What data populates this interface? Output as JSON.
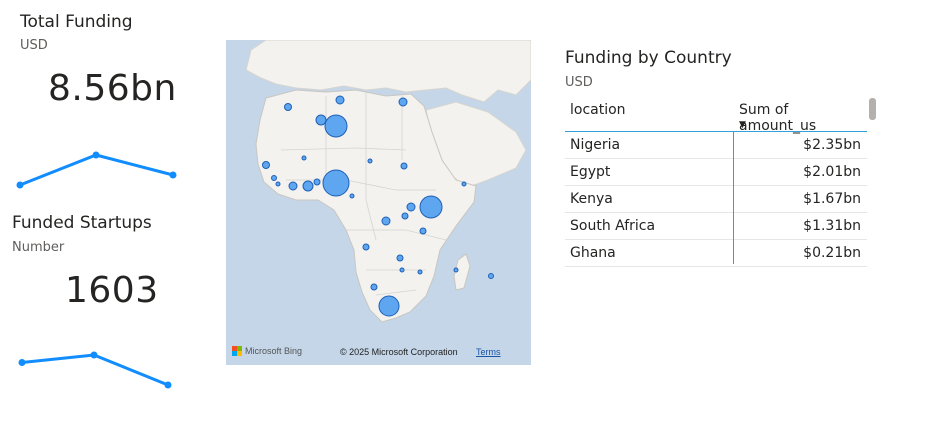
{
  "funding_card": {
    "title": "Total Funding",
    "subtitle": "USD",
    "value": "8.56bn",
    "trend": [
      2,
      5,
      3
    ]
  },
  "startups_card": {
    "title": "Funded Startups",
    "subtitle": "Number",
    "value": "1603",
    "trend": [
      4,
      5,
      1
    ]
  },
  "map": {
    "provider": "Microsoft Bing",
    "copyright": "© 2025 Microsoft Corporation",
    "terms_label": "Terms",
    "land_color": "#f3f2ef",
    "water_color": "#c4d6e8",
    "bubble_color": "#5ea7f0"
  },
  "country_table": {
    "title": "Funding by Country",
    "subtitle": "USD",
    "headers": [
      "location",
      "Sum of amount_us"
    ],
    "rows": [
      {
        "location": "Nigeria",
        "amount": "$2.35bn"
      },
      {
        "location": "Egypt",
        "amount": "$2.01bn"
      },
      {
        "location": "Kenya",
        "amount": "$1.67bn"
      },
      {
        "location": "South Africa",
        "amount": "$1.31bn"
      },
      {
        "location": "Ghana",
        "amount": "$0.21bn"
      }
    ]
  },
  "colors": {
    "accent": "#118dff",
    "table_rule": "#33a1d8"
  }
}
